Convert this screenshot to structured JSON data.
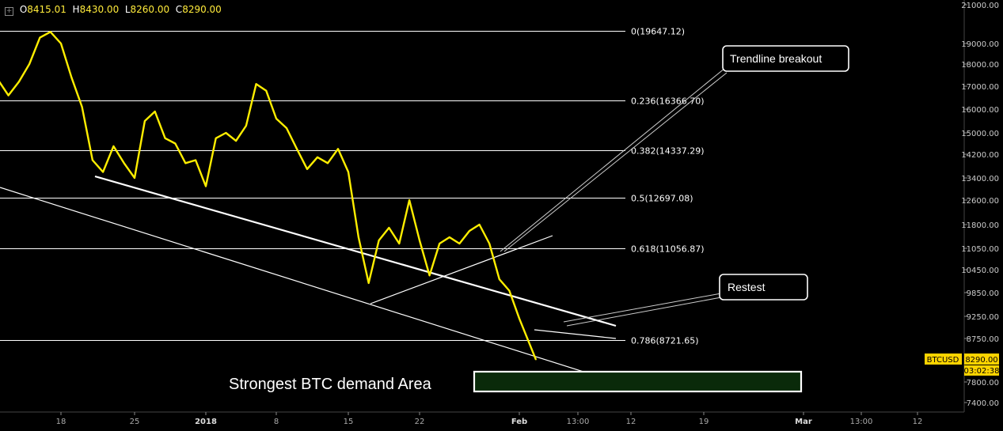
{
  "ohlc": {
    "o_label": "O",
    "o": "8415.01",
    "h_label": "H",
    "h": "8430.00",
    "l_label": "L",
    "l": "8260.00",
    "c_label": "C",
    "c": "8290.00"
  },
  "symbol": {
    "label": "BTCUSD",
    "price": "8290.00",
    "countdown": "03:02:38"
  },
  "colors": {
    "price_line": "#ffee00",
    "background": "#000000",
    "grid": "#ffffff",
    "demand_zone_fill": "#0a2a0a",
    "demand_zone_border": "#ffffff",
    "callout_border": "#ffffff",
    "callout_fill": "#000000"
  },
  "chart_data": {
    "type": "line",
    "title": "",
    "xlabel": "",
    "ylabel": "",
    "y_axis_side": "right",
    "ylim": [
      7250,
      21000
    ],
    "y_tick_labels": [
      "21000.00",
      "19000.00",
      "18000.00",
      "17000.00",
      "16000.00",
      "15000.00",
      "14200.00",
      "13400.00",
      "12600.00",
      "11800.00",
      "11050.00",
      "10450.00",
      "9850.00",
      "9250.00",
      "8750.00",
      "7800.00",
      "7400.00"
    ],
    "y_tick_values": [
      21000,
      19000,
      18000,
      17000,
      16000,
      15000,
      14200,
      13400,
      12600,
      11800,
      11050,
      10450,
      9850,
      9250,
      8750,
      7800,
      7400
    ],
    "x_tick_labels": [
      "18",
      "25",
      "2018",
      "8",
      "15",
      "22",
      "Feb",
      "13:00",
      "12",
      "19",
      "Mar",
      "13:00",
      "12"
    ],
    "x_tick_dates": [
      "2017-12-18",
      "2017-12-25",
      "2018-01-01",
      "2018-01-08",
      "2018-01-15",
      "2018-01-22",
      "2018-02-01",
      "2018-02-04 13:00",
      "2018-02-12",
      "2018-02-19",
      "2018-03-01",
      "2018-03-04 13:00",
      "2018-03-12"
    ],
    "series": [
      {
        "x": [
          "2017-12-11",
          "2017-12-12",
          "2017-12-13",
          "2017-12-14",
          "2017-12-15",
          "2017-12-16",
          "2017-12-17",
          "2017-12-18",
          "2017-12-19",
          "2017-12-20",
          "2017-12-21",
          "2017-12-22",
          "2017-12-23",
          "2017-12-24",
          "2017-12-25",
          "2017-12-26",
          "2017-12-27",
          "2017-12-28",
          "2017-12-29",
          "2017-12-30",
          "2017-12-31",
          "2018-01-01",
          "2018-01-02",
          "2018-01-03",
          "2018-01-04",
          "2018-01-05",
          "2018-01-06",
          "2018-01-07",
          "2018-01-08",
          "2018-01-09",
          "2018-01-10",
          "2018-01-11",
          "2018-01-12",
          "2018-01-13",
          "2018-01-14",
          "2018-01-15",
          "2018-01-16",
          "2018-01-17",
          "2018-01-18",
          "2018-01-19",
          "2018-01-20",
          "2018-01-21",
          "2018-01-22",
          "2018-01-23",
          "2018-01-24",
          "2018-01-25",
          "2018-01-26",
          "2018-01-27",
          "2018-01-28",
          "2018-01-29",
          "2018-01-30",
          "2018-01-31",
          "2018-02-01",
          "2018-02-02"
        ],
        "values": [
          16500,
          17300,
          16600,
          17200,
          18000,
          19300,
          19600,
          19000,
          17400,
          16100,
          14000,
          13600,
          14500,
          13900,
          13400,
          15500,
          15900,
          14800,
          14600,
          13900,
          14000,
          13100,
          14800,
          15000,
          14700,
          15300,
          17100,
          16800,
          15600,
          15200,
          14400,
          13700,
          14100,
          13900,
          14400,
          13600,
          11400,
          10100,
          11300,
          11700,
          11200,
          12600,
          11300,
          10300,
          11200,
          11400,
          11200,
          11600,
          11800,
          11200,
          10200,
          9900,
          9200,
          8290
        ]
      }
    ],
    "fib_levels": [
      {
        "ratio": "0",
        "price": 19647.12,
        "label": "0(19647.12)"
      },
      {
        "ratio": "0.236",
        "price": 16366.7,
        "label": "0.236(16366.70)"
      },
      {
        "ratio": "0.382",
        "price": 14337.29,
        "label": "0.382(14337.29)"
      },
      {
        "ratio": "0.5",
        "price": 12697.08,
        "label": "0.5(12697.08)"
      },
      {
        "ratio": "0.618",
        "price": 11056.87,
        "label": "0.618(11056.87)"
      },
      {
        "ratio": "0.786",
        "price": 8721.65,
        "label": "0.786(8721.65)"
      }
    ],
    "annotations": [
      {
        "text": "Trendline breakout"
      },
      {
        "text": "Restest"
      },
      {
        "text": "Strongest BTC demand Area"
      }
    ],
    "grid": false,
    "legend": "none"
  }
}
